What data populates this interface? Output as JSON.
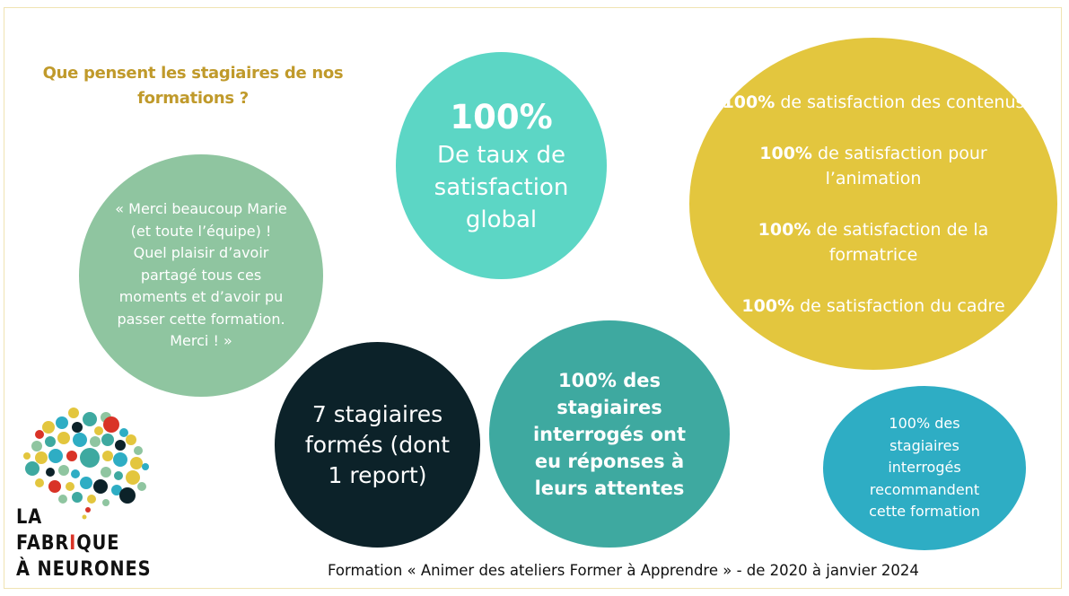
{
  "heading": "Que pensent les stagiaires de nos formations ?",
  "quote": "« Merci beaucoup Marie (et toute l’équipe) ! Quel plaisir d’avoir partagé tous ces moments et d’avoir pu passer cette formation. Merci ! »",
  "global": {
    "value": "100%",
    "label": "De taux de satisfaction global"
  },
  "satisfaction": [
    {
      "pct": "100%",
      "text": "de satisfaction des contenus"
    },
    {
      "pct": "100%",
      "text": "de satisfaction pour l’animation"
    },
    {
      "pct": "100%",
      "text": "de satisfaction de la formatrice"
    },
    {
      "pct": "100%",
      "text": "de satisfaction du cadre"
    }
  ],
  "trainees": "7 stagiaires formés (dont 1 report)",
  "expectations": "100% des stagiaires interrogés ont eu réponses à leurs attentes",
  "recommend": "100% des stagiaires interrogés recommandent cette formation",
  "footer": "Formation « Animer des ateliers Former à Apprendre » -  de 2020 à janvier 2024",
  "logo": {
    "line1": "LA",
    "line2a": "FABR",
    "line2b": "I",
    "line2c": "QUE",
    "line3": "À NEURONES"
  },
  "colors": {
    "heading": "#c09a2b",
    "quote_circle": "#8fc5a0",
    "global_circle": "#5cd6c5",
    "satisfaction_circle": "#e3c63e",
    "trainees_circle": "#0c2229",
    "expectations_circle": "#3ea9a0",
    "recommend_circle": "#2eadc4"
  }
}
